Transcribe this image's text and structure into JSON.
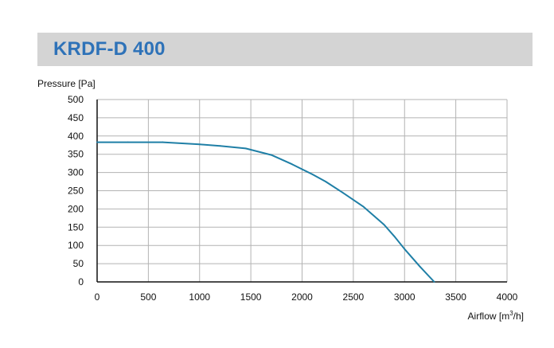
{
  "header": {
    "title": "KRDF-D 400"
  },
  "chart_data": {
    "type": "line",
    "title": "KRDF-D 400",
    "ylabel": "Pressure [Pa]",
    "xlabel": "Airflow [m³/h]",
    "xlabel_parts": {
      "before": "Airflow [m",
      "sup": "3",
      "after": "/h]"
    },
    "xlim": [
      0,
      4000
    ],
    "ylim": [
      0,
      500
    ],
    "x_ticks": [
      0,
      500,
      1000,
      1500,
      2000,
      2500,
      3000,
      3500,
      4000
    ],
    "y_ticks": [
      0,
      50,
      100,
      150,
      200,
      250,
      300,
      350,
      400,
      450,
      500
    ],
    "grid": true,
    "series": [
      {
        "color": "#1f7fa6",
        "points": [
          [
            0,
            383
          ],
          [
            300,
            383
          ],
          [
            640,
            383
          ],
          [
            1000,
            377
          ],
          [
            1200,
            373
          ],
          [
            1450,
            366
          ],
          [
            1700,
            348
          ],
          [
            1900,
            323
          ],
          [
            2100,
            295
          ],
          [
            2230,
            275
          ],
          [
            2400,
            244
          ],
          [
            2600,
            206
          ],
          [
            2800,
            157
          ],
          [
            2900,
            125
          ],
          [
            3000,
            90
          ],
          [
            3150,
            42
          ],
          [
            3290,
            0
          ]
        ]
      }
    ]
  }
}
